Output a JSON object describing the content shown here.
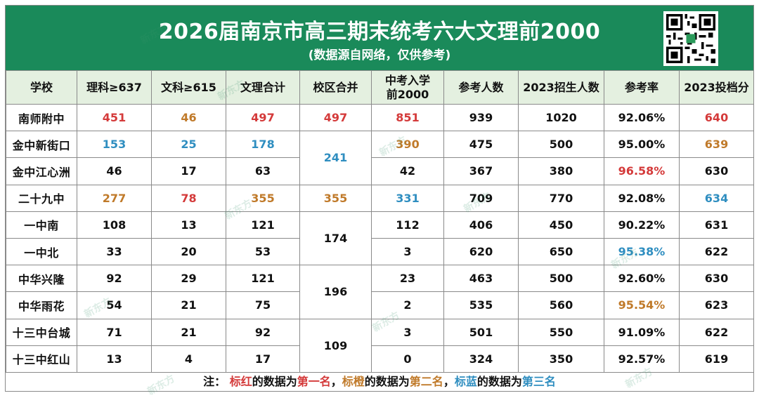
{
  "header": {
    "title": "2026届南京市高三期末统考六大文理前2000",
    "subtitle": "(数据源自网络，仅供参考)"
  },
  "table": {
    "columns": [
      "学校",
      "理科≥637",
      "文科≥615",
      "文理合计",
      "校区合并",
      "中考入学前2000",
      "参考人数",
      "2023招生人数",
      "参考率",
      "2023投档分"
    ],
    "rows": [
      {
        "school": "南师附中",
        "sci": "451",
        "arts": "46",
        "total": "497",
        "merged": "497",
        "zhongkao": "851",
        "examinees": "939",
        "enroll": "1020",
        "rate": "92.06%",
        "score": "640"
      },
      {
        "school": "金中新街口",
        "sci": "153",
        "arts": "25",
        "total": "178",
        "merged": "241",
        "zhongkao": "390",
        "examinees": "475",
        "enroll": "500",
        "rate": "95.00%",
        "score": "639"
      },
      {
        "school": "金中江心洲",
        "sci": "46",
        "arts": "17",
        "total": "63",
        "zhongkao": "42",
        "examinees": "367",
        "enroll": "380",
        "rate": "96.58%",
        "score": "630"
      },
      {
        "school": "二十九中",
        "sci": "277",
        "arts": "78",
        "total": "355",
        "merged": "355",
        "zhongkao": "331",
        "examinees": "709",
        "enroll": "770",
        "rate": "92.08%",
        "score": "634"
      },
      {
        "school": "一中南",
        "sci": "108",
        "arts": "13",
        "total": "121",
        "merged": "174",
        "zhongkao": "112",
        "examinees": "406",
        "enroll": "450",
        "rate": "90.22%",
        "score": "631"
      },
      {
        "school": "一中北",
        "sci": "33",
        "arts": "20",
        "total": "53",
        "zhongkao": "3",
        "examinees": "620",
        "enroll": "650",
        "rate": "95.38%",
        "score": "622"
      },
      {
        "school": "中华兴隆",
        "sci": "92",
        "arts": "29",
        "total": "121",
        "merged": "196",
        "zhongkao": "23",
        "examinees": "463",
        "enroll": "500",
        "rate": "92.60%",
        "score": "630"
      },
      {
        "school": "中华雨花",
        "sci": "54",
        "arts": "21",
        "total": "75",
        "zhongkao": "2",
        "examinees": "535",
        "enroll": "560",
        "rate": "95.54%",
        "score": "623"
      },
      {
        "school": "十三中台城",
        "sci": "71",
        "arts": "21",
        "total": "92",
        "merged": "109",
        "zhongkao": "3",
        "examinees": "501",
        "enroll": "550",
        "rate": "91.09%",
        "score": "622"
      },
      {
        "school": "十三中红山",
        "sci": "13",
        "arts": "4",
        "total": "17",
        "zhongkao": "0",
        "examinees": "324",
        "enroll": "350",
        "rate": "92.57%",
        "score": "619"
      }
    ]
  },
  "note": {
    "prefix": "注：",
    "red_label": "标红",
    "mid1": "的数据为",
    "first": "第一名",
    "sep1": "，",
    "orange_label": "标橙",
    "mid2": "的数据为",
    "second": "第二名",
    "sep2": "，",
    "blue_label": "标蓝",
    "mid3": "的数据为",
    "third": "第三名"
  },
  "watermark": "新东方",
  "colors": {
    "header_bg": "#1a8a5a",
    "header_row_bg": "#e4f0e0",
    "first": "#d43a3a",
    "second": "#c07a2a",
    "third": "#2f8ec0"
  }
}
